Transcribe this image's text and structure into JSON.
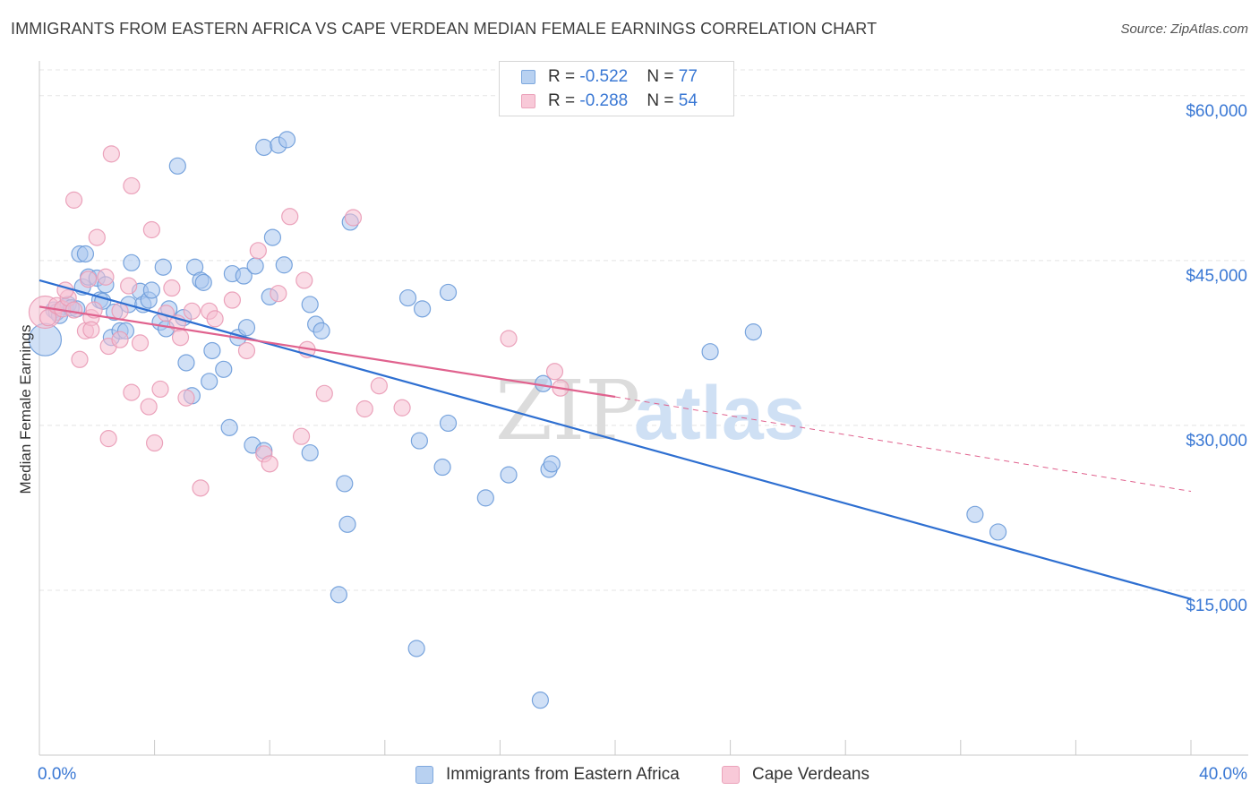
{
  "header": {
    "title": "IMMIGRANTS FROM EASTERN AFRICA VS CAPE VERDEAN MEDIAN FEMALE EARNINGS CORRELATION CHART",
    "source": "Source: ZipAtlas.com"
  },
  "watermark": {
    "part1": "ZIP",
    "part2": "atlas"
  },
  "legend": {
    "series1": {
      "r_label": "R = ",
      "r_value": "-0.522",
      "n_label": "N = ",
      "n_value": "77"
    },
    "series2": {
      "r_label": "R = ",
      "r_value": "-0.288",
      "n_label": "N = ",
      "n_value": "54"
    }
  },
  "colors": {
    "blue_fill": "#a9c7ee",
    "blue_stroke": "#6b9bd9",
    "blue_line": "#2e6fd1",
    "pink_fill": "#f6bfd1",
    "pink_stroke": "#e99ab5",
    "pink_line": "#e0628e",
    "axis_label": "#3a78d4",
    "grid": "#e4e4e4"
  },
  "chart_data": {
    "type": "scatter",
    "title": "IMMIGRANTS FROM EASTERN AFRICA VS CAPE VERDEAN MEDIAN FEMALE EARNINGS CORRELATION CHART",
    "xlabel": "",
    "ylabel": "Median Female Earnings",
    "xlim": [
      0,
      40
    ],
    "ylim": [
      0,
      63000
    ],
    "x_tick_labels": [
      "0.0%",
      "40.0%"
    ],
    "y_ticks": [
      15000,
      30000,
      45000,
      60000
    ],
    "y_tick_labels": [
      "$15,000",
      "$30,000",
      "$45,000",
      "$60,000"
    ],
    "grid": true,
    "legend_position": "bottom",
    "series": [
      {
        "name": "Immigrants from Eastern Africa",
        "r": -0.522,
        "n": 77,
        "trend": {
          "x": [
            0,
            40
          ],
          "y": [
            43200,
            14200
          ]
        },
        "points": [
          [
            0.2,
            37800,
            1
          ],
          [
            0.5,
            40500,
            0
          ],
          [
            0.6,
            40300,
            0
          ],
          [
            0.9,
            40800,
            0
          ],
          [
            0.7,
            40000,
            0
          ],
          [
            1.0,
            41000,
            0
          ],
          [
            1.1,
            40700,
            0
          ],
          [
            1.3,
            40600,
            0
          ],
          [
            1.5,
            42600,
            0
          ],
          [
            1.4,
            45600,
            0
          ],
          [
            1.6,
            45600,
            0
          ],
          [
            1.7,
            43500,
            0
          ],
          [
            2.0,
            43400,
            0
          ],
          [
            2.1,
            41400,
            0
          ],
          [
            2.2,
            41300,
            0
          ],
          [
            2.3,
            42800,
            0
          ],
          [
            2.5,
            38000,
            0
          ],
          [
            2.6,
            40300,
            0
          ],
          [
            2.8,
            38600,
            0
          ],
          [
            3.0,
            38600,
            0
          ],
          [
            3.1,
            41000,
            0
          ],
          [
            3.2,
            44800,
            0
          ],
          [
            3.5,
            42200,
            0
          ],
          [
            3.6,
            41000,
            0
          ],
          [
            3.8,
            41400,
            0
          ],
          [
            3.9,
            42300,
            0
          ],
          [
            4.2,
            39400,
            0
          ],
          [
            4.3,
            44400,
            0
          ],
          [
            4.4,
            38800,
            0
          ],
          [
            4.5,
            40600,
            0
          ],
          [
            4.8,
            53600,
            0
          ],
          [
            5.0,
            39800,
            0
          ],
          [
            5.1,
            35700,
            0
          ],
          [
            5.3,
            32700,
            0
          ],
          [
            5.4,
            44400,
            0
          ],
          [
            5.6,
            43200,
            0
          ],
          [
            5.7,
            43000,
            0
          ],
          [
            5.9,
            34000,
            0
          ],
          [
            6.0,
            36800,
            0
          ],
          [
            6.4,
            35100,
            0
          ],
          [
            6.6,
            29800,
            0
          ],
          [
            6.7,
            43800,
            0
          ],
          [
            6.9,
            38000,
            0
          ],
          [
            7.1,
            43600,
            0
          ],
          [
            7.2,
            38900,
            0
          ],
          [
            7.5,
            44500,
            0
          ],
          [
            7.4,
            28200,
            0
          ],
          [
            7.8,
            27700,
            0
          ],
          [
            7.8,
            55300,
            0
          ],
          [
            8.0,
            41700,
            0
          ],
          [
            8.1,
            47100,
            0
          ],
          [
            8.3,
            55500,
            0
          ],
          [
            8.5,
            44600,
            0
          ],
          [
            8.6,
            56000,
            0
          ],
          [
            9.4,
            27500,
            0
          ],
          [
            9.4,
            41000,
            0
          ],
          [
            9.6,
            39200,
            0
          ],
          [
            9.8,
            38600,
            0
          ],
          [
            10.4,
            14600,
            0
          ],
          [
            10.7,
            21000,
            0
          ],
          [
            10.6,
            24700,
            0
          ],
          [
            10.8,
            48500,
            0
          ],
          [
            12.8,
            41600,
            0
          ],
          [
            13.1,
            9700,
            0
          ],
          [
            13.3,
            40600,
            0
          ],
          [
            13.2,
            28600,
            0
          ],
          [
            14.0,
            26200,
            0
          ],
          [
            14.2,
            30200,
            0
          ],
          [
            14.2,
            42100,
            0
          ],
          [
            15.5,
            23400,
            0
          ],
          [
            16.3,
            25500,
            0
          ],
          [
            17.4,
            5000,
            0
          ],
          [
            17.7,
            26000,
            0
          ],
          [
            17.8,
            26500,
            0
          ],
          [
            17.5,
            33800,
            0
          ],
          [
            23.3,
            36700,
            0
          ],
          [
            24.8,
            38500,
            0
          ],
          [
            32.5,
            21900,
            0
          ],
          [
            33.3,
            20300,
            0
          ]
        ]
      },
      {
        "name": "Cape Verdeans",
        "r": -0.288,
        "n": 54,
        "trend": {
          "x": [
            0,
            20
          ],
          "y": [
            40800,
            32600
          ]
        },
        "trend_dashed": {
          "x": [
            20,
            40
          ],
          "y": [
            32600,
            24000
          ]
        },
        "points": [
          [
            0.2,
            40300,
            1
          ],
          [
            0.3,
            39800,
            0
          ],
          [
            0.6,
            40900,
            0
          ],
          [
            0.8,
            40600,
            0
          ],
          [
            1.0,
            41600,
            0
          ],
          [
            1.2,
            40500,
            0
          ],
          [
            0.9,
            42300,
            0
          ],
          [
            1.2,
            50500,
            0
          ],
          [
            1.4,
            36000,
            0
          ],
          [
            1.6,
            38600,
            0
          ],
          [
            1.7,
            43300,
            0
          ],
          [
            1.8,
            39800,
            0
          ],
          [
            1.8,
            38700,
            0
          ],
          [
            1.9,
            40500,
            0
          ],
          [
            2.0,
            47100,
            0
          ],
          [
            2.3,
            43500,
            0
          ],
          [
            2.4,
            37200,
            0
          ],
          [
            2.4,
            28800,
            0
          ],
          [
            2.5,
            54700,
            0
          ],
          [
            2.8,
            40400,
            0
          ],
          [
            2.8,
            37800,
            0
          ],
          [
            3.1,
            42700,
            0
          ],
          [
            3.2,
            51800,
            0
          ],
          [
            3.2,
            33000,
            0
          ],
          [
            3.5,
            37500,
            0
          ],
          [
            3.8,
            31700,
            0
          ],
          [
            3.9,
            47800,
            0
          ],
          [
            4.0,
            28400,
            0
          ],
          [
            4.2,
            33300,
            0
          ],
          [
            4.4,
            40200,
            0
          ],
          [
            4.6,
            42500,
            0
          ],
          [
            4.8,
            39300,
            0
          ],
          [
            4.9,
            38000,
            0
          ],
          [
            5.1,
            32500,
            0
          ],
          [
            5.3,
            40400,
            0
          ],
          [
            5.6,
            24300,
            0
          ],
          [
            5.9,
            40400,
            0
          ],
          [
            6.1,
            39700,
            0
          ],
          [
            6.7,
            41400,
            0
          ],
          [
            7.2,
            36800,
            0
          ],
          [
            7.6,
            45900,
            0
          ],
          [
            7.8,
            27400,
            0
          ],
          [
            8.0,
            26500,
            0
          ],
          [
            8.3,
            42000,
            0
          ],
          [
            8.7,
            49000,
            0
          ],
          [
            9.1,
            29000,
            0
          ],
          [
            9.2,
            43200,
            0
          ],
          [
            9.3,
            36900,
            0
          ],
          [
            9.9,
            32900,
            0
          ],
          [
            10.9,
            48900,
            0
          ],
          [
            11.3,
            31500,
            0
          ],
          [
            11.8,
            33600,
            0
          ],
          [
            12.6,
            31600,
            0
          ],
          [
            16.3,
            37900,
            0
          ],
          [
            17.9,
            34900,
            0
          ],
          [
            18.1,
            33400,
            0
          ]
        ]
      }
    ]
  }
}
